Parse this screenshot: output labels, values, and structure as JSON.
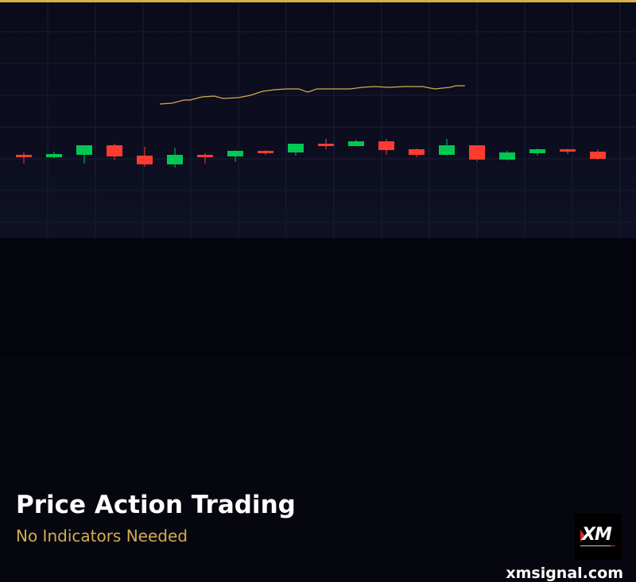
{
  "header": {
    "accent_color": "#d8b048"
  },
  "chart_data": {
    "type": "candlestick",
    "title": "",
    "xlabel": "",
    "ylabel": "",
    "ylim": [
      0,
      300
    ],
    "grid": true,
    "colors": {
      "up": "#00c853",
      "down": "#ff3b30",
      "line": "#d4ad4e",
      "grid": "#1b1d33"
    },
    "candles": [
      {
        "o": 105,
        "h": 108,
        "l": 94,
        "c": 102
      },
      {
        "o": 102,
        "h": 109,
        "l": 101,
        "c": 106
      },
      {
        "o": 105,
        "h": 117,
        "l": 94,
        "c": 117
      },
      {
        "o": 117,
        "h": 119,
        "l": 98,
        "c": 103
      },
      {
        "o": 104,
        "h": 115,
        "l": 90,
        "c": 93
      },
      {
        "o": 93,
        "h": 114,
        "l": 89,
        "c": 105
      },
      {
        "o": 105,
        "h": 107,
        "l": 94,
        "c": 102
      },
      {
        "o": 103,
        "h": 111,
        "l": 96,
        "c": 110
      },
      {
        "o": 110,
        "h": 111,
        "l": 105,
        "c": 107
      },
      {
        "o": 108,
        "h": 119,
        "l": 104,
        "c": 119
      },
      {
        "o": 119,
        "h": 125,
        "l": 112,
        "c": 116
      },
      {
        "o": 116,
        "h": 124,
        "l": 116,
        "c": 122
      },
      {
        "o": 122,
        "h": 125,
        "l": 105,
        "c": 111
      },
      {
        "o": 112,
        "h": 113,
        "l": 102,
        "c": 105
      },
      {
        "o": 105,
        "h": 125,
        "l": 104,
        "c": 117
      },
      {
        "o": 117,
        "h": 117,
        "l": 97,
        "c": 99
      },
      {
        "o": 99,
        "h": 110,
        "l": 98,
        "c": 108
      },
      {
        "o": 107,
        "h": 113,
        "l": 104,
        "c": 112
      },
      {
        "o": 112,
        "h": 113,
        "l": 106,
        "c": 109
      },
      {
        "o": 109,
        "h": 112,
        "l": 99,
        "c": 100
      }
    ],
    "line": {
      "x": [
        4.5,
        4.9,
        5.3,
        5.5,
        5.9,
        6.3,
        6.6,
        7.1,
        7.5,
        7.9,
        8.3,
        8.7,
        9.1,
        9.4,
        9.7,
        10.3,
        10.8,
        11.2,
        11.6,
        12.1,
        12.6,
        13.2,
        13.6,
        14.1,
        14.3,
        14.6
      ],
      "y": [
        169,
        170,
        174,
        174,
        178,
        179,
        176,
        177,
        180,
        185,
        187,
        188,
        188,
        184,
        188,
        188,
        188,
        190,
        191,
        190,
        191,
        191,
        188,
        190,
        192,
        192
      ]
    }
  },
  "footer": {
    "title": "Price Action Trading",
    "subtitle": "No Indicators Needed",
    "logo_text": "XM",
    "website": "xmsignal.com"
  }
}
